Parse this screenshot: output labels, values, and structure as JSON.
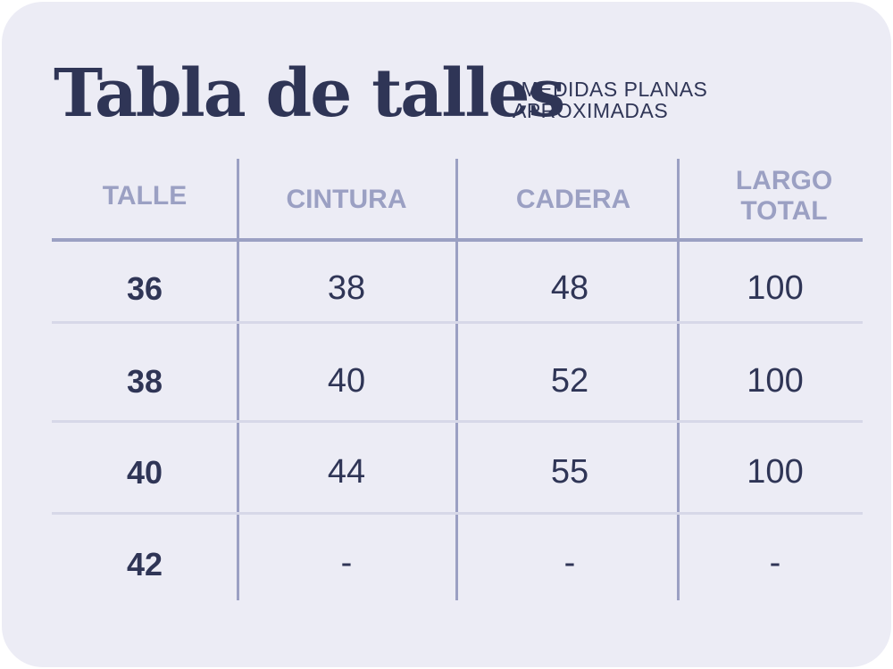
{
  "title": "Tabla de talles",
  "note": [
    "*MEDIDAS PLANAS",
    "APROXIMADAS"
  ],
  "table": {
    "headers": [
      "TALLE",
      "CINTURA",
      "CADERA",
      "LARGO TOTAL"
    ],
    "rows": [
      [
        "36",
        "38",
        "48",
        "100"
      ],
      [
        "38",
        "40",
        "52",
        "100"
      ],
      [
        "40",
        "44",
        "55",
        "100"
      ],
      [
        "42",
        "-",
        "-",
        "-"
      ]
    ]
  },
  "colors": {
    "card": "#ececf5",
    "text": "#2f3556",
    "header_text": "#9ba0c3",
    "column_lines": "#9ba0c3",
    "row_lines": "#d7d8e8"
  }
}
